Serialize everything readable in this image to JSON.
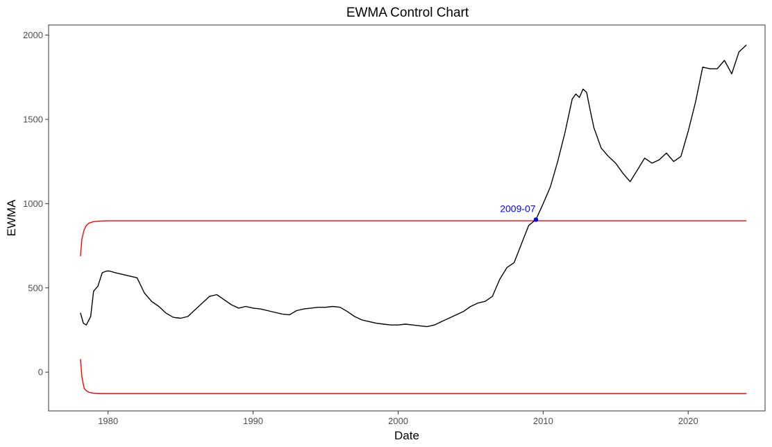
{
  "chart_data": {
    "type": "line",
    "title": "EWMA Control Chart",
    "xlabel": "Date",
    "ylabel": "EWMA",
    "xlim": [
      1975.9,
      2025.3
    ],
    "ylim": [
      -230,
      2060
    ],
    "x_ticks": [
      1980,
      1990,
      2000,
      2010,
      2020
    ],
    "x_tick_labels": [
      "1980",
      "1990",
      "2000",
      "2010",
      "2020"
    ],
    "y_ticks": [
      0,
      500,
      1000,
      1500,
      2000
    ],
    "y_tick_labels": [
      "0",
      "500",
      "1000",
      "1500",
      "2000"
    ],
    "grid": false,
    "colors": {
      "ewma": "#000000",
      "limits": "#ff0000",
      "annotation": "#0000ff"
    },
    "series": [
      {
        "role": "ewma",
        "x": [
          1978.1,
          1978.3,
          1978.5,
          1978.8,
          1979.0,
          1979.3,
          1979.6,
          1979.9,
          1980.1,
          1980.5,
          1981.0,
          1981.5,
          1982.0,
          1982.5,
          1983.0,
          1983.5,
          1984.0,
          1984.5,
          1985.0,
          1985.5,
          1986.0,
          1986.5,
          1987.0,
          1987.5,
          1988.0,
          1988.5,
          1989.0,
          1989.5,
          1990.0,
          1990.5,
          1991.0,
          1991.5,
          1992.0,
          1992.5,
          1993.0,
          1993.5,
          1994.0,
          1994.5,
          1995.0,
          1995.5,
          1996.0,
          1996.5,
          1997.0,
          1997.5,
          1998.0,
          1998.5,
          1999.0,
          1999.5,
          2000.0,
          2000.5,
          2001.0,
          2001.5,
          2002.0,
          2002.5,
          2003.0,
          2003.5,
          2004.0,
          2004.5,
          2005.0,
          2005.5,
          2006.0,
          2006.5,
          2007.0,
          2007.5,
          2008.0,
          2008.5,
          2009.0,
          2009.5,
          2010.0,
          2010.5,
          2011.0,
          2011.5,
          2012.0,
          2012.25,
          2012.5,
          2012.75,
          2013.0,
          2013.25,
          2013.5,
          2014.0,
          2014.5,
          2015.0,
          2015.5,
          2016.0,
          2016.5,
          2017.0,
          2017.5,
          2018.0,
          2018.5,
          2019.0,
          2019.5,
          2020.0,
          2020.5,
          2021.0,
          2021.5,
          2022.0,
          2022.5,
          2023.0,
          2023.5,
          2024.0
        ],
        "y": [
          350,
          290,
          280,
          330,
          480,
          510,
          590,
          600,
          600,
          590,
          580,
          570,
          560,
          470,
          420,
          390,
          350,
          325,
          320,
          330,
          370,
          410,
          450,
          460,
          430,
          400,
          380,
          390,
          380,
          375,
          365,
          355,
          345,
          340,
          365,
          375,
          380,
          385,
          385,
          390,
          385,
          360,
          330,
          310,
          300,
          290,
          285,
          280,
          280,
          285,
          280,
          275,
          270,
          280,
          300,
          320,
          340,
          360,
          390,
          410,
          420,
          450,
          550,
          620,
          650,
          760,
          870,
          905,
          1000,
          1100,
          1250,
          1420,
          1620,
          1650,
          1630,
          1680,
          1660,
          1550,
          1450,
          1330,
          1280,
          1240,
          1180,
          1130,
          1200,
          1270,
          1240,
          1260,
          1300,
          1250,
          1280,
          1430,
          1600,
          1810,
          1800,
          1800,
          1850,
          1770,
          1900,
          1940
        ]
      },
      {
        "role": "upper-control-limit",
        "x": [
          1978.1,
          1978.2,
          1978.35,
          1978.5,
          1978.7,
          1979.0,
          1979.5,
          1980.0,
          2024.0
        ],
        "y": [
          690,
          790,
          845,
          870,
          885,
          893,
          897,
          898,
          898
        ]
      },
      {
        "role": "lower-control-limit",
        "x": [
          1978.1,
          1978.2,
          1978.35,
          1978.5,
          1978.7,
          1979.0,
          1979.5,
          1980.0,
          2024.0
        ],
        "y": [
          75,
          -30,
          -95,
          -110,
          -120,
          -125,
          -127,
          -127,
          -127
        ]
      }
    ],
    "annotations": [
      {
        "label": "2009-07",
        "x": 2009.5,
        "y": 905
      }
    ]
  }
}
